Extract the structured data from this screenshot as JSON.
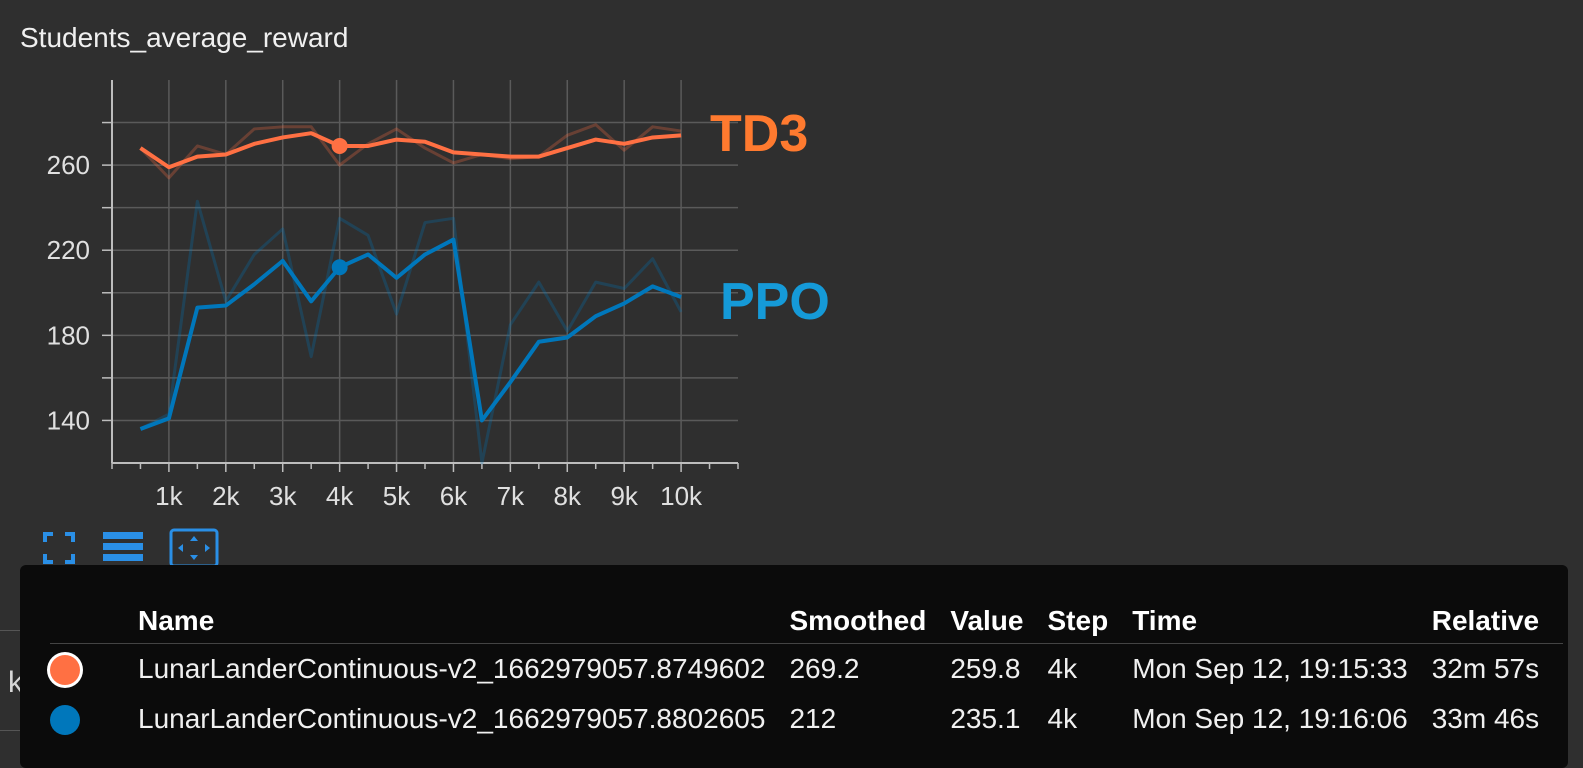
{
  "card": {
    "title": "Students_average_reward"
  },
  "background_row": {
    "label": "kl_loss"
  },
  "chart_data": {
    "type": "line",
    "title": "Students_average_reward",
    "xlim": [
      0,
      11000
    ],
    "ylim": [
      120,
      300
    ],
    "x_ticks": [
      1000,
      2000,
      3000,
      4000,
      5000,
      6000,
      7000,
      8000,
      9000,
      10000
    ],
    "x_tick_labels": [
      "1k",
      "2k",
      "3k",
      "4k",
      "5k",
      "6k",
      "7k",
      "8k",
      "9k",
      "10k"
    ],
    "y_ticks": [
      140,
      180,
      220,
      260
    ],
    "y_tick_labels": [
      "140",
      "180",
      "220",
      "260"
    ],
    "grid": true,
    "annotations": [
      {
        "text": "TD3",
        "color": "#ff7a2f"
      },
      {
        "text": "PPO",
        "color": "#159ad8"
      }
    ],
    "series": [
      {
        "name": "LunarLanderContinuous-v2_1662979057.8749602",
        "color": "#ff7043",
        "highlight_x": 4000,
        "x": [
          500,
          1000,
          1500,
          2000,
          2500,
          3000,
          3500,
          4000,
          4500,
          5000,
          5500,
          6000,
          6500,
          7000,
          7500,
          8000,
          8500,
          9000,
          9500,
          10000
        ],
        "raw": [
          268,
          254,
          269,
          265,
          277,
          278,
          278,
          260,
          270,
          277,
          268,
          261,
          265,
          263,
          264,
          274,
          279,
          267,
          278,
          276
        ],
        "smoothed": [
          268,
          259,
          264,
          265,
          270,
          273,
          275,
          269,
          269,
          272,
          271,
          266,
          265,
          264,
          264,
          268,
          272,
          270,
          273,
          274
        ]
      },
      {
        "name": "LunarLanderContinuous-v2_1662979057.8802605",
        "color": "#0077bb",
        "highlight_x": 4000,
        "x": [
          500,
          1000,
          1500,
          2000,
          2500,
          3000,
          3500,
          4000,
          4500,
          5000,
          5500,
          6000,
          6500,
          7000,
          7500,
          8000,
          8500,
          9000,
          9500,
          10000
        ],
        "raw": [
          136,
          143,
          243,
          196,
          218,
          230,
          170,
          235,
          227,
          190,
          233,
          235,
          120,
          185,
          205,
          182,
          205,
          202,
          216,
          191
        ],
        "smoothed": [
          136,
          141,
          193,
          194,
          204,
          215,
          196,
          212,
          218,
          207,
          218,
          225,
          140,
          158,
          177,
          179,
          189,
          195,
          203,
          198
        ]
      }
    ]
  },
  "tooltip": {
    "columns": [
      "Name",
      "Smoothed",
      "Value",
      "Step",
      "Time",
      "Relative"
    ],
    "rows": [
      {
        "color": "#ff7043",
        "name": "LunarLanderContinuous-v2_1662979057.8749602",
        "smoothed": "269.2",
        "value": "259.8",
        "step": "4k",
        "time": "Mon Sep 12, 19:15:33",
        "relative": "32m 57s"
      },
      {
        "color": "#0077bb",
        "name": "LunarLanderContinuous-v2_1662979057.8802605",
        "smoothed": "212",
        "value": "235.1",
        "step": "4k",
        "time": "Mon Sep 12, 19:16:06",
        "relative": "33m 46s"
      }
    ]
  },
  "toolbar": {
    "buttons": [
      {
        "icon": "fullscreen-icon"
      },
      {
        "icon": "data-table-icon"
      },
      {
        "icon": "fit-domain-icon"
      }
    ]
  }
}
